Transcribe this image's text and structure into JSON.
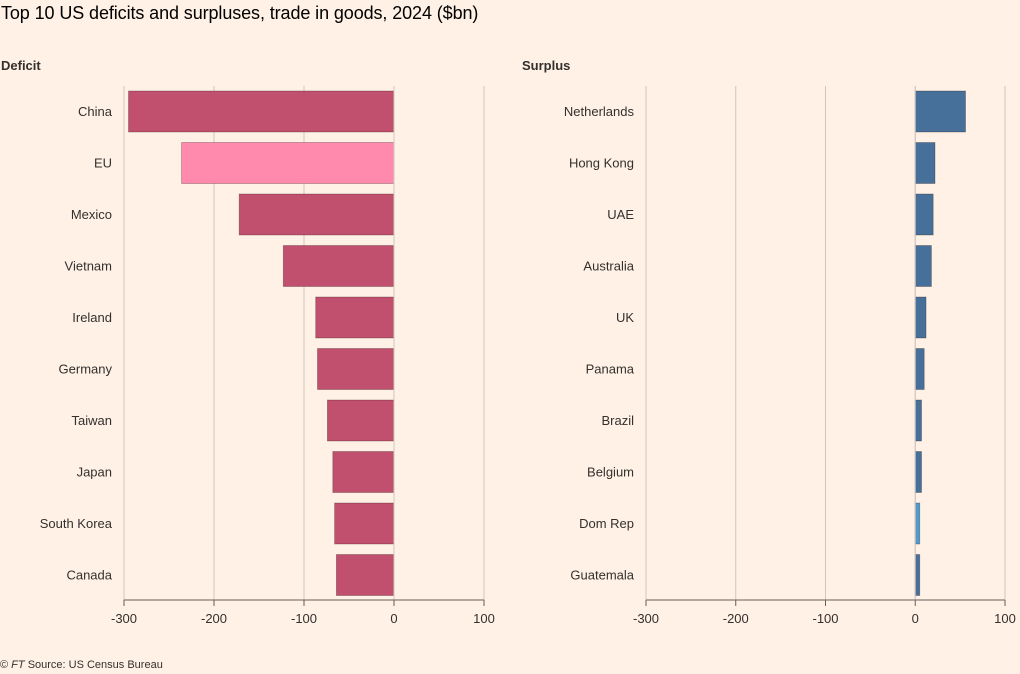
{
  "title": "Top 10 US deficits and surpluses, trade in goods, 2024 ($bn)",
  "footer": {
    "copyright": "©",
    "brand": "FT",
    "source": "Source: US Census Bureau"
  },
  "colors": {
    "background": "#fff1e5",
    "deficit": "#c0506e",
    "deficit_highlight": "#ff8aad",
    "surplus": "#46709a",
    "surplus_highlight": "#4d9ccd",
    "grid": "#cfc6bd",
    "axis": "#66605c"
  },
  "chart_data": [
    {
      "type": "bar",
      "orientation": "horizontal",
      "panel_title": "Deficit",
      "categories": [
        "China",
        "EU",
        "Mexico",
        "Vietnam",
        "Ireland",
        "Germany",
        "Taiwan",
        "Japan",
        "South Korea",
        "Canada"
      ],
      "values": [
        -295,
        -236,
        -172,
        -123,
        -87,
        -85,
        -74,
        -68,
        -66,
        -64
      ],
      "highlight": [
        "EU"
      ],
      "xlim": [
        -300,
        100
      ],
      "xticks": [
        -300,
        -200,
        -100,
        0,
        100
      ],
      "xtick_labels": [
        "-300",
        "-200",
        "-100",
        "0",
        "100"
      ],
      "grid": true
    },
    {
      "type": "bar",
      "orientation": "horizontal",
      "panel_title": "Surplus",
      "categories": [
        "Netherlands",
        "Hong Kong",
        "UAE",
        "Australia",
        "UK",
        "Panama",
        "Brazil",
        "Belgium",
        "Dom Rep",
        "Guatemala"
      ],
      "values": [
        56,
        22,
        20,
        18,
        12,
        10,
        7,
        7,
        5,
        5
      ],
      "highlight": [
        "Dom Rep"
      ],
      "xlim": [
        -300,
        100
      ],
      "xticks": [
        -300,
        -200,
        -100,
        0,
        100
      ],
      "xtick_labels": [
        "-300",
        "-200",
        "-100",
        "0",
        "100"
      ],
      "grid": true
    }
  ]
}
